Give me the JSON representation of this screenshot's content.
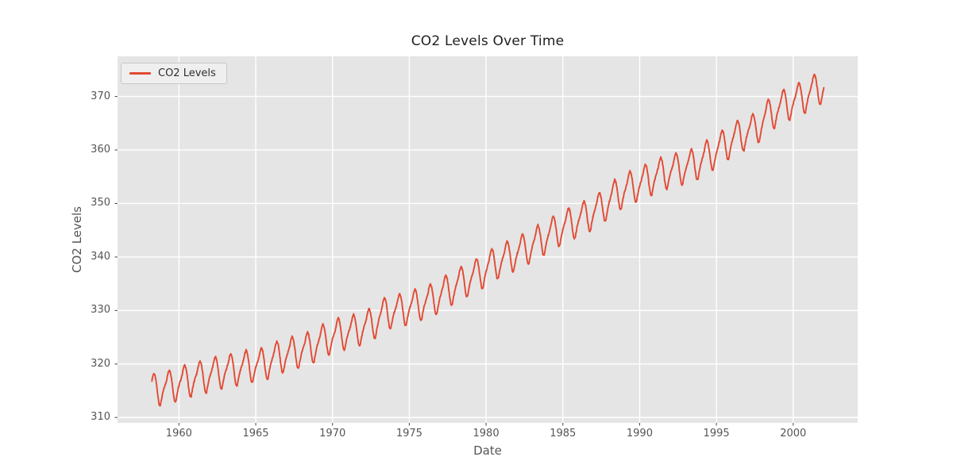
{
  "chart_data": {
    "type": "line",
    "title": "CO2 Levels Over Time",
    "xlabel": "Date",
    "ylabel": "CO2 Levels",
    "legend_position": "upper left",
    "x_ticks": [
      1960,
      1965,
      1970,
      1975,
      1980,
      1985,
      1990,
      1995,
      2000
    ],
    "y_ticks": [
      310,
      320,
      330,
      340,
      350,
      360,
      370
    ],
    "xlim": [
      1956.0,
      2004.2
    ],
    "ylim": [
      309.0,
      377.5
    ],
    "grid": true,
    "colors": {
      "line": "#E24A33",
      "plot_bg": "#E5E5E5",
      "grid": "#FFFFFF",
      "figure_bg": "#FFFFFF",
      "tick_text": "#555555",
      "title_text": "#1f1f1f"
    },
    "series": [
      {
        "name": "CO2 Levels",
        "x_start": 1958.24,
        "x_end": 2001.99,
        "points_per_year": 52,
        "annual_means_start_year": 1958,
        "annual_means": [
          315.33,
          315.97,
          316.91,
          317.64,
          318.45,
          318.99,
          319.62,
          320.04,
          321.37,
          322.18,
          323.05,
          324.62,
          325.68,
          326.32,
          327.46,
          329.68,
          330.19,
          331.12,
          332.03,
          333.84,
          335.41,
          336.84,
          338.76,
          340.12,
          341.48,
          343.15,
          344.85,
          346.35,
          347.61,
          349.31,
          351.69,
          353.2,
          354.45,
          355.7,
          356.54,
          357.21,
          358.96,
          360.97,
          362.74,
          363.88,
          366.84,
          368.54,
          369.71,
          371.32
        ],
        "seasonal_cycle": [
          -0.1,
          0.55,
          1.35,
          2.5,
          3.05,
          2.35,
          0.75,
          -1.35,
          -3.05,
          -3.25,
          -2.0,
          -0.9
        ],
        "noise_amplitude": 0.3
      }
    ]
  }
}
